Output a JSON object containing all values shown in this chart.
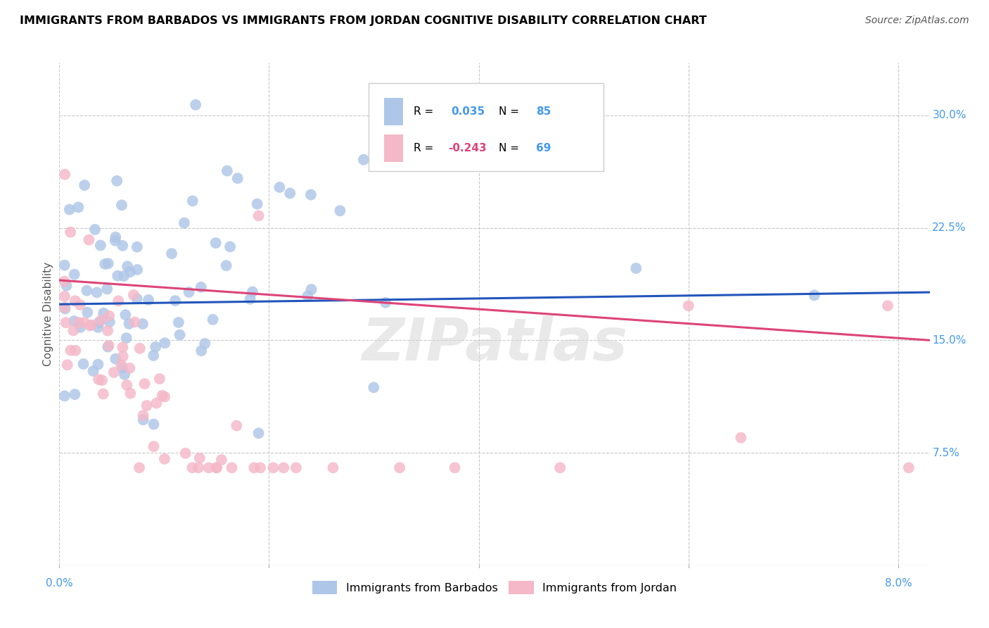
{
  "title": "IMMIGRANTS FROM BARBADOS VS IMMIGRANTS FROM JORDAN COGNITIVE DISABILITY CORRELATION CHART",
  "source": "Source: ZipAtlas.com",
  "ylabel": "Cognitive Disability",
  "ytick_vals": [
    0.075,
    0.15,
    0.225,
    0.3
  ],
  "ytick_labels": [
    "7.5%",
    "15.0%",
    "22.5%",
    "30.0%"
  ],
  "xtick_vals": [
    0.0,
    0.02,
    0.04,
    0.06,
    0.08
  ],
  "xlim": [
    0.0,
    0.083
  ],
  "ylim": [
    0.0,
    0.335
  ],
  "barbados_color": "#aec6e8",
  "jordan_color": "#f4b8c8",
  "barbados_line_color": "#2255bb",
  "jordan_line_color": "#dd4477",
  "R_barbados": 0.035,
  "N_barbados": 85,
  "R_jordan": -0.243,
  "N_jordan": 69,
  "legend_label_1": "Immigrants from Barbados",
  "legend_label_2": "Immigrants from Jordan",
  "watermark": "ZIPatlas",
  "background_color": "#ffffff",
  "grid_color": "#c8c8c8",
  "blue_text_color": "#4499ee",
  "b_line_x0": 0.0,
  "b_line_y0": 0.174,
  "b_line_x1": 0.083,
  "b_line_y1": 0.182,
  "j_line_x0": 0.0,
  "j_line_y0": 0.19,
  "j_line_x1": 0.083,
  "j_line_y1": 0.15
}
